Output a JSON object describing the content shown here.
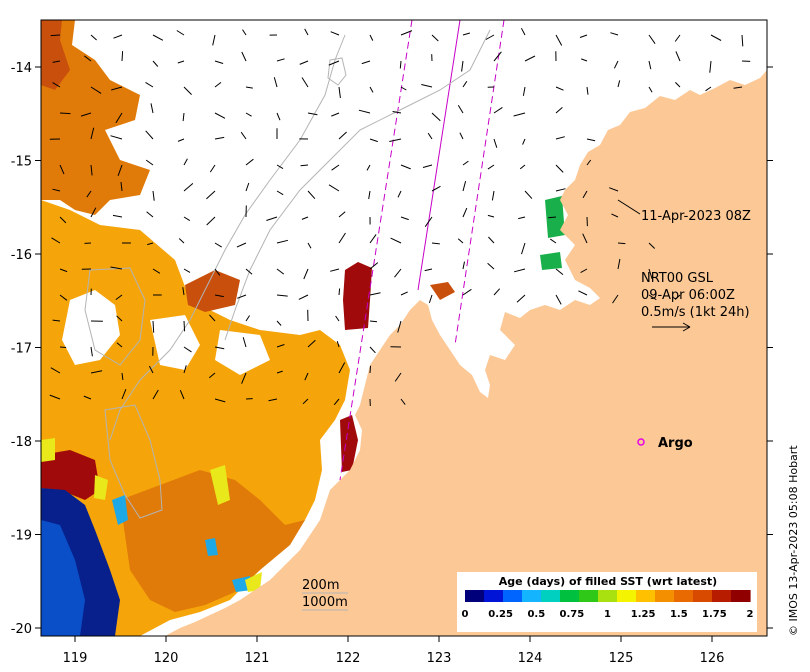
{
  "map": {
    "lon_ticks": [
      "119",
      "120",
      "121",
      "122",
      "123",
      "124",
      "125",
      "126"
    ],
    "lat_ticks": [
      "-14",
      "-15",
      "-16",
      "-17",
      "-18",
      "-19",
      "-20"
    ],
    "land_color": "#fcc896",
    "sst_colors": {
      "deep_blue": "#08208c",
      "blue": "#0a4fc8",
      "cyan": "#1ea8e6",
      "green": "#19b04c",
      "yellow": "#e8e81a",
      "amber": "#f5a50a",
      "orange": "#e07a08",
      "rust": "#c8500c",
      "dark_red": "#a00a0a"
    }
  },
  "annotations": {
    "track_label": "11-Apr-2023 08Z",
    "source_line1": "NRT00 GSL",
    "source_line2": "09-Apr 06:00Z",
    "scale_label": "0.5m/s (1kt 24h)",
    "argo_label": "Argo",
    "contour_200": "200m",
    "contour_1000": "1000m"
  },
  "colorbar": {
    "title": "Age (days) of filled SST (wrt latest)",
    "ticks": [
      "0",
      "0.25",
      "0.5",
      "0.75",
      "1",
      "1.25",
      "1.5",
      "1.75",
      "2"
    ],
    "colors": [
      "#00007a",
      "#0014d8",
      "#0064ff",
      "#14b4ff",
      "#00d0c0",
      "#00c040",
      "#30c818",
      "#a8e010",
      "#f4f400",
      "#ffc000",
      "#f49000",
      "#e86a00",
      "#d84a00",
      "#b81c00",
      "#900000"
    ]
  },
  "credit": "© IMOS 13-Apr-2023 05:08 Hobart"
}
